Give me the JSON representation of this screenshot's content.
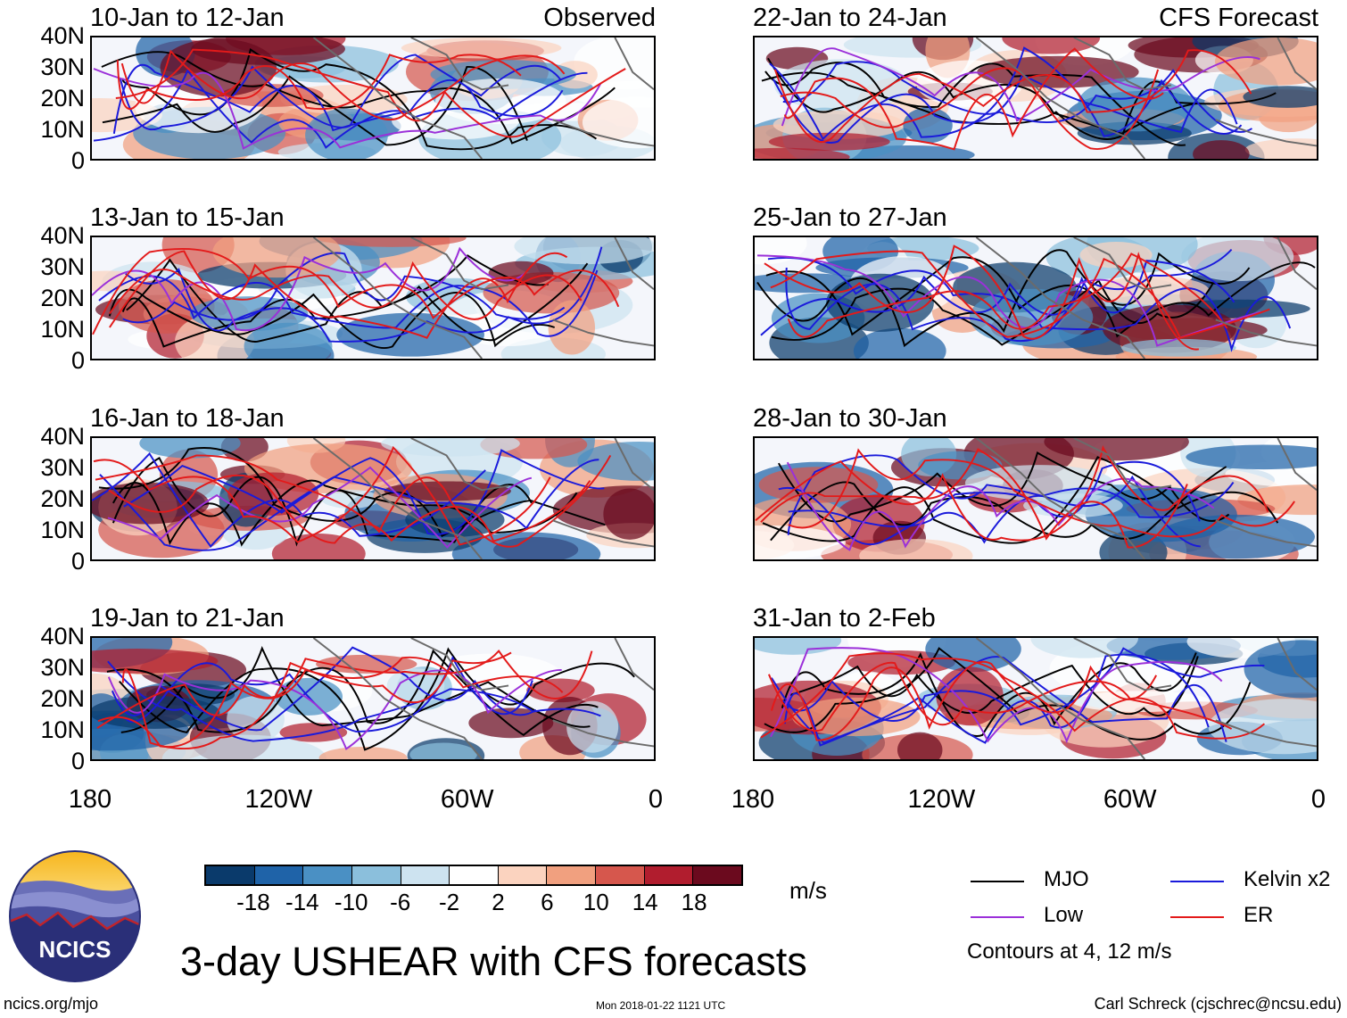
{
  "figure": {
    "main_title": "3-day USHEAR with CFS forecasts",
    "site": "ncics.org/mjo",
    "timestamp": "Mon 2018-01-22 1121 UTC",
    "author": "Carl Schreck (cjschrec@ncsu.edu)",
    "logo_text": "NCICS"
  },
  "chart_data": {
    "type": "heatmap",
    "variable": "USHEAR",
    "units": "m/s",
    "latitude_ticks": [
      "40N",
      "30N",
      "20N",
      "10N",
      "0"
    ],
    "longitude_ticks": [
      "180",
      "120W",
      "60W",
      "0"
    ],
    "lat_range": [
      0,
      40
    ],
    "lon_range": [
      -180,
      0
    ],
    "colorbar": {
      "levels": [
        "-18",
        "-14",
        "-10",
        "-6",
        "-2",
        "2",
        "6",
        "10",
        "14",
        "18"
      ],
      "colors": [
        "#0a3a6b",
        "#1f63a8",
        "#4a90c4",
        "#8bbfdc",
        "#cde3f0",
        "#ffffff",
        "#fbd3bf",
        "#f1a07f",
        "#d6574d",
        "#b11d2e",
        "#6b0a1e"
      ]
    },
    "panels": [
      {
        "column": "left",
        "row": 0,
        "period": "10-Jan to 12-Jan",
        "label": "Observed"
      },
      {
        "column": "left",
        "row": 1,
        "period": "13-Jan to 15-Jan",
        "label": ""
      },
      {
        "column": "left",
        "row": 2,
        "period": "16-Jan to 18-Jan",
        "label": ""
      },
      {
        "column": "left",
        "row": 3,
        "period": "19-Jan to 21-Jan",
        "label": ""
      },
      {
        "column": "right",
        "row": 0,
        "period": "22-Jan to 24-Jan",
        "label": "CFS Forecast"
      },
      {
        "column": "right",
        "row": 1,
        "period": "25-Jan to 27-Jan",
        "label": ""
      },
      {
        "column": "right",
        "row": 2,
        "period": "28-Jan to 30-Jan",
        "label": ""
      },
      {
        "column": "right",
        "row": 3,
        "period": "31-Jan to 2-Feb",
        "label": ""
      }
    ],
    "legend": {
      "entries": [
        {
          "name": "MJO",
          "color": "#000000"
        },
        {
          "name": "Kelvin x2",
          "color": "#1a1adb"
        },
        {
          "name": "Low",
          "color": "#9b30d9"
        },
        {
          "name": "ER",
          "color": "#e31a1a"
        }
      ],
      "contour_note": "Contours at 4, 12 m/s"
    }
  }
}
